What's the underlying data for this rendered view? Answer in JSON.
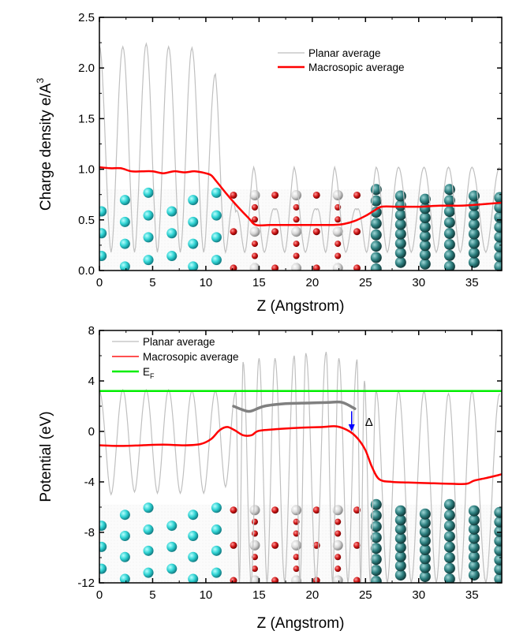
{
  "chart_data": [
    {
      "type": "line",
      "title": "",
      "xlabel": "Z (Angstrom)",
      "ylabel": "Charge density e/A",
      "ylabel_superscript": "3",
      "xlim": [
        0,
        37.8
      ],
      "ylim": [
        0.0,
        2.5
      ],
      "xticks": [
        0,
        5,
        10,
        15,
        20,
        25,
        30,
        35
      ],
      "xtick_labels": [
        "0",
        "5",
        "10",
        "15",
        "20",
        "25",
        "30",
        "35"
      ],
      "yticks": [
        0.0,
        0.5,
        1.0,
        1.5,
        2.0,
        2.5
      ],
      "ytick_labels": [
        "0.0",
        "0.5",
        "1.0",
        "1.5",
        "2.0",
        "2.5"
      ],
      "grid": false,
      "legend_position": "top-center",
      "legend": [
        "Planar average",
        "Macrosopic average"
      ],
      "series": [
        {
          "name": "Planar average",
          "color": "#c0c0c0",
          "peaks_z": [
            0.0,
            2.2,
            4.4,
            6.5,
            8.7,
            10.9,
            12.8,
            14.5,
            16.5,
            18.3,
            20.4,
            22.1,
            24.2,
            26.0,
            28.1,
            30.5,
            32.8,
            35.0,
            37.6
          ],
          "peak_values": [
            2.22,
            2.21,
            2.24,
            2.21,
            2.2,
            1.94,
            0.58,
            1.02,
            0.6,
            1.02,
            0.6,
            1.02,
            0.6,
            1.02,
            1.02,
            1.02,
            1.02,
            1.02,
            1.02
          ],
          "minimum_value": 0.18
        },
        {
          "name": "Macrosopic average",
          "color": "#ff0000",
          "x": [
            0,
            1,
            2,
            3,
            4,
            5,
            6,
            7,
            8,
            9,
            10,
            10.5,
            11,
            12,
            13,
            14,
            14.7,
            16,
            18,
            20,
            22,
            23,
            24,
            25,
            25.8,
            26.5,
            28,
            30,
            32,
            34,
            35.5,
            37.8
          ],
          "y": [
            1.02,
            1.01,
            1.01,
            0.98,
            0.98,
            0.98,
            0.96,
            0.98,
            0.97,
            0.98,
            0.96,
            0.94,
            0.88,
            0.75,
            0.63,
            0.52,
            0.45,
            0.45,
            0.45,
            0.45,
            0.45,
            0.46,
            0.49,
            0.54,
            0.59,
            0.63,
            0.63,
            0.63,
            0.64,
            0.64,
            0.65,
            0.67
          ]
        }
      ],
      "atom_overlay": [
        {
          "species": "cyan",
          "color": "#2fd3d3",
          "z_range": [
            0,
            11
          ]
        },
        {
          "species": "red",
          "color": "#d21a1a",
          "z_range": [
            12.5,
            24.5
          ]
        },
        {
          "species": "white",
          "color": "#d8d8d8",
          "z_range": [
            14.5,
            22.5
          ]
        },
        {
          "species": "teal",
          "color": "#2e8080",
          "z_range": [
            26,
            37.8
          ]
        }
      ]
    },
    {
      "type": "line",
      "title": "",
      "xlabel": "Z (Angstrom)",
      "ylabel": "Potential (eV)",
      "xlim": [
        0,
        37.8
      ],
      "ylim": [
        -12,
        8
      ],
      "xticks": [
        0,
        5,
        10,
        15,
        20,
        25,
        30,
        35
      ],
      "xtick_labels": [
        "0",
        "5",
        "10",
        "15",
        "20",
        "25",
        "30",
        "35"
      ],
      "yticks": [
        -12,
        -8,
        -4,
        0,
        4,
        8
      ],
      "ytick_labels": [
        "-12",
        "-8",
        "-4",
        "0",
        "4",
        "8"
      ],
      "grid": false,
      "legend_position": "top-left",
      "legend": [
        "Planar average",
        "Macrosopic average",
        "E_F"
      ],
      "series": [
        {
          "name": "Planar average",
          "color": "#c0c0c0",
          "peaks_z": [
            0.0,
            2.2,
            4.4,
            6.5,
            8.7,
            10.9,
            12.8,
            13.5,
            15.0,
            16.5,
            18.3,
            19.4,
            21.3,
            22.5,
            24.2,
            24.9,
            26.0,
            28.1,
            30.5,
            32.8,
            35.0,
            37.6
          ],
          "peak_values": [
            3.2,
            3.3,
            3.3,
            3.3,
            3.2,
            3.2,
            3.1,
            5.5,
            5.8,
            5.8,
            6.0,
            6.2,
            6.3,
            5.8,
            5.7,
            4.0,
            3.2,
            3.2,
            3.2,
            3.0,
            3.2,
            3.0
          ],
          "minimum_values": [
            -5.0,
            -4.8,
            -4.9,
            -4.9,
            -4.9,
            -4.4,
            -12,
            -12,
            -12,
            -12,
            -12,
            -12,
            -12,
            -12,
            -12,
            -12,
            -12,
            -12,
            -12,
            -12,
            -12
          ]
        },
        {
          "name": "Macrosopic average",
          "color": "#ff0000",
          "x": [
            0,
            2,
            4,
            6,
            8,
            9.5,
            10.5,
            11.3,
            12,
            12.7,
            13.5,
            14.3,
            15,
            17,
            19,
            21,
            22.3,
            23.5,
            24.3,
            25,
            25.6,
            26.3,
            27.5,
            29,
            31,
            33,
            34.5,
            35.2,
            36.3,
            37.8
          ],
          "y": [
            -1.1,
            -1.15,
            -1.1,
            -1.05,
            -1.1,
            -1.0,
            -0.6,
            0.1,
            0.35,
            0.1,
            -0.3,
            -0.3,
            0.05,
            0.2,
            0.3,
            0.35,
            0.4,
            0.0,
            -0.6,
            -1.5,
            -2.8,
            -3.8,
            -4.0,
            -4.05,
            -4.1,
            -4.15,
            -4.15,
            -3.9,
            -3.7,
            -3.4
          ]
        },
        {
          "name": "E_F",
          "color": "#00ee00",
          "value": 3.2
        },
        {
          "name": "shifted macroscopic average (reference)",
          "color": "#808080",
          "x": [
            12.6,
            13.5,
            14.2,
            15.5,
            17.5,
            19.5,
            21.5,
            22.8,
            24.0
          ],
          "y": [
            2.0,
            1.7,
            1.6,
            2.0,
            2.2,
            2.25,
            2.3,
            2.3,
            1.8
          ]
        }
      ],
      "annotations": [
        {
          "text": "Δ",
          "type": "arrow",
          "color": "#0000ff",
          "x": 23.7,
          "from_y": 1.6,
          "to_y": 0.0
        }
      ],
      "atom_overlay": [
        {
          "species": "cyan",
          "color": "#2fd3d3",
          "z_range": [
            0,
            11
          ]
        },
        {
          "species": "red",
          "color": "#d21a1a",
          "z_range": [
            12.5,
            24.5
          ]
        },
        {
          "species": "white",
          "color": "#d8d8d8",
          "z_range": [
            14.5,
            22.5
          ]
        },
        {
          "species": "teal",
          "color": "#2e8080",
          "z_range": [
            26,
            37.8
          ]
        }
      ]
    }
  ]
}
